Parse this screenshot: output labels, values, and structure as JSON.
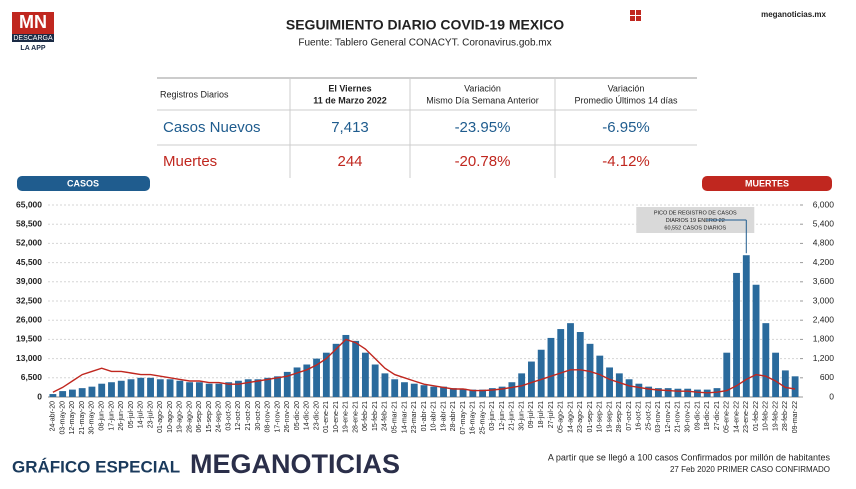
{
  "header": {
    "logo": "MN",
    "logo_sub": "DESCARGA",
    "logo_app": "LA APP",
    "title": "SEGUIMIENTO DIARIO COVID-19 MEXICO",
    "source": "Fuente: Tablero General CONACYT. Coronavirus.gob.mx",
    "site": "meganoticias.mx"
  },
  "table": {
    "header": [
      [
        "Registros Diarios"
      ],
      [
        "El Viernes",
        "11 de Marzo 2022"
      ],
      [
        "Variación",
        "Mismo Día Semana Anterior"
      ],
      [
        "Variación",
        "Promedio Últimos 14 días"
      ]
    ],
    "rows": [
      [
        "Casos Nuevos",
        "7,413",
        "-23.95%",
        "-6.95%"
      ],
      [
        "Muertes",
        "244",
        "-20.78%",
        "-4.12%"
      ]
    ]
  },
  "footer": {
    "left": "GRÁFICO ESPECIAL",
    "brand": "MEGANOTICIAS",
    "note": "A partir que se llegó a 100 casos Confirmados por millón de habitantes",
    "first_case": "27 Feb 2020 PRIMER CASO CONFIRMADO"
  },
  "chart_data": {
    "type": "bar_line",
    "categories": [
      "24-abr-20",
      "03-may-20",
      "12-may-20",
      "21-may-20",
      "30-may-20",
      "08-jun-20",
      "17-jun-20",
      "26-jun-20",
      "05-jul-20",
      "14-jul-20",
      "23-jul-20",
      "01-ago-20",
      "10-ago-20",
      "19-ago-20",
      "28-ago-20",
      "06-sep-20",
      "15-sep-20",
      "24-sep-20",
      "03-oct-20",
      "12-oct-20",
      "21-oct-20",
      "30-oct-20",
      "08-nov-20",
      "17-nov-20",
      "26-nov-20",
      "05-dic-20",
      "14-dic-20",
      "23-dic-20",
      "01-ene-21",
      "10-ene-21",
      "19-ene-21",
      "28-ene-21",
      "06-feb-21",
      "15-feb-21",
      "24-feb-21",
      "05-mar-21",
      "14-mar-21",
      "23-mar-21",
      "01-abr-21",
      "10-abr-21",
      "19-abr-21",
      "28-abr-21",
      "07-may-21",
      "16-may-21",
      "25-may-21",
      "03-jun-21",
      "12-jun-21",
      "21-jun-21",
      "30-jun-21",
      "09-jul-21",
      "18-jul-21",
      "27-jul-21",
      "05-ago-21",
      "14-ago-21",
      "23-ago-21",
      "01-sep-21",
      "10-sep-21",
      "19-sep-21",
      "28-sep-21",
      "07-oct-21",
      "16-oct-21",
      "25-oct-21",
      "03-nov-21",
      "12-nov-21",
      "21-nov-21",
      "30-nov-21",
      "09-dic-21",
      "18-dic-21",
      "27-dic-21",
      "05-ene-22",
      "14-ene-22",
      "23-ene-22",
      "01-feb-22",
      "10-feb-22",
      "19-feb-22",
      "28-feb-22",
      "09-mar-22"
    ],
    "series": [
      {
        "name": "CASOS",
        "color": "#2a6a9c",
        "values": [
          1000,
          2000,
          2500,
          3000,
          3500,
          4500,
          5000,
          5500,
          6000,
          6500,
          6500,
          6000,
          6000,
          5500,
          5000,
          5000,
          4500,
          4500,
          5000,
          5500,
          6000,
          6000,
          6500,
          7000,
          8500,
          10000,
          11000,
          13000,
          15000,
          18000,
          21000,
          19000,
          15000,
          11000,
          8000,
          6000,
          5000,
          4500,
          4000,
          3500,
          3500,
          3000,
          2800,
          2500,
          2500,
          3000,
          3500,
          5000,
          8000,
          12000,
          16000,
          20000,
          23000,
          25000,
          22000,
          18000,
          14000,
          10000,
          8000,
          6000,
          4500,
          3500,
          3000,
          3000,
          2800,
          2800,
          2500,
          2500,
          3000,
          15000,
          42000,
          48000,
          38000,
          25000,
          15000,
          9000,
          7000
        ]
      },
      {
        "name": "MUERTES",
        "color": "#c0271f",
        "axis": "y2",
        "values": [
          150,
          300,
          500,
          700,
          800,
          900,
          800,
          800,
          750,
          700,
          700,
          650,
          600,
          550,
          500,
          500,
          450,
          450,
          400,
          400,
          450,
          500,
          550,
          600,
          650,
          750,
          850,
          1000,
          1200,
          1500,
          1800,
          1700,
          1500,
          1200,
          900,
          700,
          600,
          500,
          400,
          350,
          300,
          250,
          250,
          200,
          200,
          220,
          250,
          300,
          350,
          450,
          550,
          650,
          750,
          850,
          850,
          800,
          700,
          550,
          450,
          350,
          300,
          250,
          220,
          200,
          180,
          180,
          150,
          130,
          150,
          200,
          350,
          550,
          700,
          650,
          500,
          300,
          250
        ]
      }
    ],
    "ylim": [
      0,
      65000
    ],
    "yticks": [
      0,
      {
        "value": 6500,
        "label": "6,500"
      },
      {
        "value": 13000,
        "label": "13,000"
      },
      {
        "value": 19500,
        "label": "19,500"
      },
      {
        "value": 26000,
        "label": "26,000"
      },
      {
        "value": 32500,
        "label": "32,500"
      },
      {
        "value": 39000,
        "label": "39,000"
      },
      {
        "value": 45500,
        "label": "45,500"
      },
      {
        "value": 52000,
        "label": "52,000"
      },
      {
        "value": 58500,
        "label": "58,500"
      },
      {
        "value": 65000,
        "label": "65,000"
      }
    ],
    "y2lim": [
      0,
      6000
    ],
    "y2ticks": [
      0,
      600,
      {
        "value": 1200,
        "label": "1,200"
      },
      {
        "value": 1800,
        "label": "1,800"
      },
      {
        "value": 2400,
        "label": "2,400"
      },
      {
        "value": 3000,
        "label": "3,000"
      },
      {
        "value": 3600,
        "label": "3,600"
      },
      {
        "value": 4200,
        "label": "4,200"
      },
      {
        "value": 4800,
        "label": "4,800"
      },
      {
        "value": 5400,
        "label": "5,400"
      },
      {
        "value": 6000,
        "label": "6,000"
      }
    ],
    "grid": true,
    "annotation": {
      "lines": [
        "PICO DE REGISTRO DE CASOS",
        "DIARIOS 19 ENERO 22",
        "60,552 CASOS DIARIOS"
      ]
    }
  }
}
